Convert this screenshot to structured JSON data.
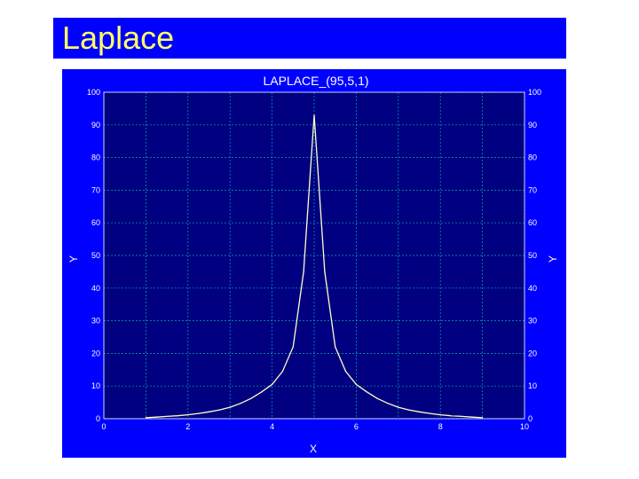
{
  "slide": {
    "title": "Laplace"
  },
  "colors": {
    "background": "#0000ff",
    "title_text": "#ffff66",
    "plot_bg": "#000080",
    "curve": "#ffffcc",
    "grid": "#00aaaa"
  },
  "chart_data": {
    "type": "line",
    "title": "LAPLACE_(95,5,1)",
    "xlabel": "X",
    "ylabel": "Y",
    "ylabel_right": "Y",
    "xlim": [
      0,
      10
    ],
    "ylim": [
      0,
      100
    ],
    "x_ticks": [
      "0",
      "2",
      "4",
      "6",
      "8",
      "10"
    ],
    "y_ticks": [
      "0",
      "10",
      "20",
      "30",
      "40",
      "50",
      "60",
      "70",
      "80",
      "90",
      "100"
    ],
    "grid": true,
    "series": [
      {
        "x": [
          1.0,
          1.25,
          1.5,
          1.75,
          2.0,
          2.25,
          2.5,
          2.75,
          3.0,
          3.25,
          3.5,
          3.75,
          4.0,
          4.25,
          4.5,
          4.75,
          5.0,
          5.25,
          5.5,
          5.75,
          6.0,
          6.25,
          6.5,
          6.75,
          7.0,
          7.25,
          7.5,
          7.75,
          8.0,
          8.25,
          8.5,
          8.75,
          9.0
        ],
        "y": [
          0.3,
          0.5,
          0.7,
          0.9,
          1.2,
          1.6,
          2.1,
          2.7,
          3.5,
          4.7,
          6.2,
          8.2,
          10.5,
          14.5,
          22.0,
          45.0,
          93.0,
          45.0,
          22.0,
          14.5,
          10.5,
          8.2,
          6.2,
          4.7,
          3.5,
          2.7,
          2.1,
          1.6,
          1.2,
          0.9,
          0.7,
          0.5,
          0.3
        ]
      }
    ]
  }
}
